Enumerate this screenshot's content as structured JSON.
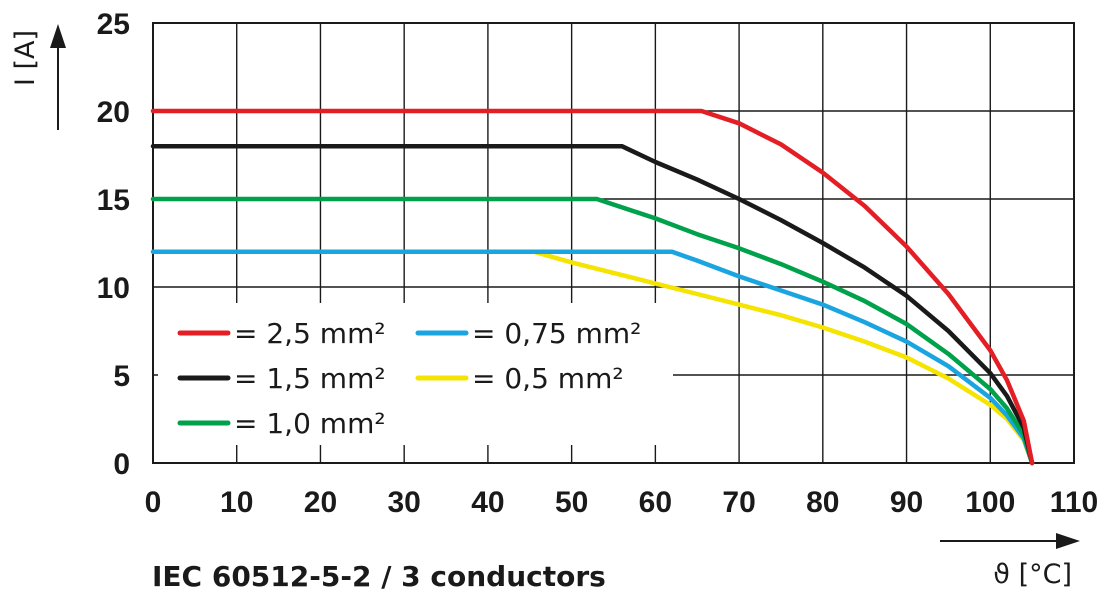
{
  "chart_data": {
    "type": "line",
    "xlabel": "ϑ [°C]",
    "ylabel": "I [A]",
    "xlim": [
      0,
      110
    ],
    "ylim": [
      0,
      25
    ],
    "xticks": [
      0,
      10,
      20,
      30,
      40,
      50,
      60,
      70,
      80,
      90,
      100,
      110
    ],
    "yticks": [
      0,
      5,
      10,
      15,
      20,
      25
    ],
    "grid": true,
    "legend_position": "bottom-left",
    "caption": "IEC 60512-5-2 / 3 conductors",
    "series": [
      {
        "name": "= 2,5 mm²",
        "color": "#e31e24",
        "points": [
          [
            0,
            20
          ],
          [
            65.5,
            20
          ],
          [
            70,
            19.3
          ],
          [
            75,
            18.1
          ],
          [
            80,
            16.5
          ],
          [
            85,
            14.6
          ],
          [
            90,
            12.3
          ],
          [
            95,
            9.6
          ],
          [
            100,
            6.4
          ],
          [
            102,
            4.7
          ],
          [
            104,
            2.4
          ],
          [
            105,
            0
          ]
        ]
      },
      {
        "name": "= 1,5 mm²",
        "color": "#1a1a1a",
        "points": [
          [
            0,
            18
          ],
          [
            56,
            18
          ],
          [
            60,
            17.1
          ],
          [
            65,
            16.1
          ],
          [
            70,
            15.0
          ],
          [
            75,
            13.8
          ],
          [
            80,
            12.5
          ],
          [
            85,
            11.1
          ],
          [
            90,
            9.5
          ],
          [
            95,
            7.5
          ],
          [
            100,
            5.1
          ],
          [
            102,
            3.8
          ],
          [
            104,
            2.0
          ],
          [
            105,
            0
          ]
        ]
      },
      {
        "name": "= 1,0 mm²",
        "color": "#00a14b",
        "points": [
          [
            0,
            15
          ],
          [
            53,
            15
          ],
          [
            60,
            13.9
          ],
          [
            65,
            13.0
          ],
          [
            70,
            12.2
          ],
          [
            75,
            11.3
          ],
          [
            80,
            10.3
          ],
          [
            85,
            9.2
          ],
          [
            90,
            7.9
          ],
          [
            95,
            6.2
          ],
          [
            100,
            4.2
          ],
          [
            102,
            3.1
          ],
          [
            104,
            1.6
          ],
          [
            105,
            0
          ]
        ]
      },
      {
        "name": "= 0,75 mm²",
        "color": "#1ba5e0",
        "points": [
          [
            0,
            12
          ],
          [
            62,
            12
          ],
          [
            65,
            11.5
          ],
          [
            70,
            10.6
          ],
          [
            75,
            9.8
          ],
          [
            80,
            9.0
          ],
          [
            85,
            8.0
          ],
          [
            90,
            6.9
          ],
          [
            95,
            5.5
          ],
          [
            100,
            3.7
          ],
          [
            102,
            2.7
          ],
          [
            104,
            1.4
          ],
          [
            105,
            0
          ]
        ]
      },
      {
        "name": "= 0,5 mm²",
        "color": "#f5e400",
        "points": [
          [
            0,
            12
          ],
          [
            45.5,
            12
          ],
          [
            50,
            11.4
          ],
          [
            55,
            10.8
          ],
          [
            60,
            10.2
          ],
          [
            65,
            9.6
          ],
          [
            70,
            9.0
          ],
          [
            75,
            8.4
          ],
          [
            80,
            7.7
          ],
          [
            85,
            6.9
          ],
          [
            90,
            6.0
          ],
          [
            95,
            4.8
          ],
          [
            100,
            3.3
          ],
          [
            102,
            2.5
          ],
          [
            104,
            1.3
          ],
          [
            105,
            0
          ]
        ]
      }
    ]
  }
}
